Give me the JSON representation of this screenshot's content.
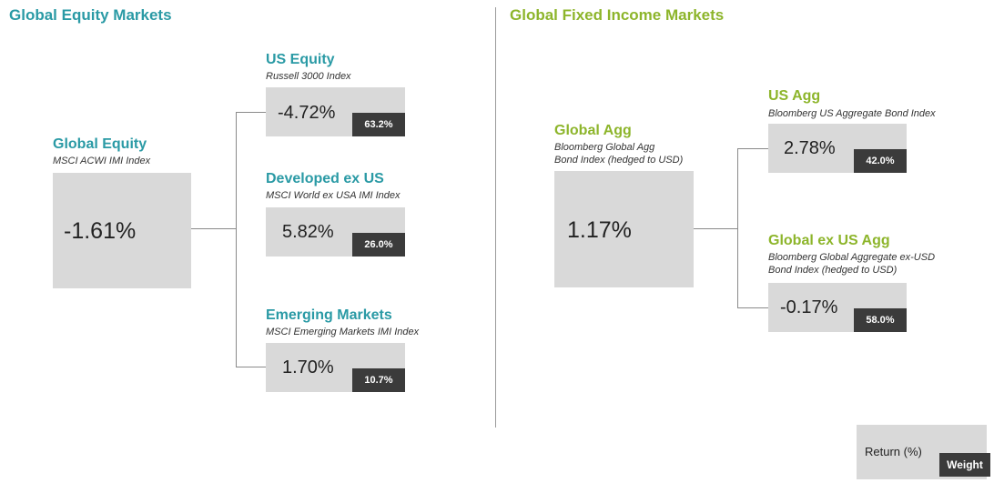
{
  "equity": {
    "section_title": "Global Equity Markets",
    "main": {
      "title": "Global Equity",
      "index": "MSCI ACWI IMI Index",
      "return": "-1.61%"
    },
    "children": [
      {
        "title": "US Equity",
        "index": "Russell 3000 Index",
        "return": "-4.72%",
        "weight": "63.2%"
      },
      {
        "title": "Developed ex US",
        "index": "MSCI World ex USA IMI Index",
        "return": "5.82%",
        "weight": "26.0%"
      },
      {
        "title": "Emerging Markets",
        "index": "MSCI Emerging Markets IMI Index",
        "return": "1.70%",
        "weight": "10.7%"
      }
    ]
  },
  "fixed_income": {
    "section_title": "Global Fixed Income Markets",
    "main": {
      "title": "Global Agg",
      "index_line1": "Bloomberg Global Agg",
      "index_line2": "Bond Index (hedged to USD)",
      "return": "1.17%"
    },
    "children": [
      {
        "title": "US Agg",
        "index_line1": "Bloomberg US Aggregate Bond Index",
        "index_line2": "",
        "return": "2.78%",
        "weight": "42.0%"
      },
      {
        "title": "Global ex US Agg",
        "index_line1": "Bloomberg Global Aggregate ex-USD",
        "index_line2": "Bond Index (hedged to USD)",
        "return": "-0.17%",
        "weight": "58.0%"
      }
    ]
  },
  "legend": {
    "return_label": "Return (%)",
    "weight_label": "Weight"
  },
  "colors": {
    "equity_accent": "#2a9aa5",
    "fixed_income_accent": "#8db52b",
    "box_fill": "#d9d9d9",
    "weight_fill": "#3b3b3b"
  }
}
